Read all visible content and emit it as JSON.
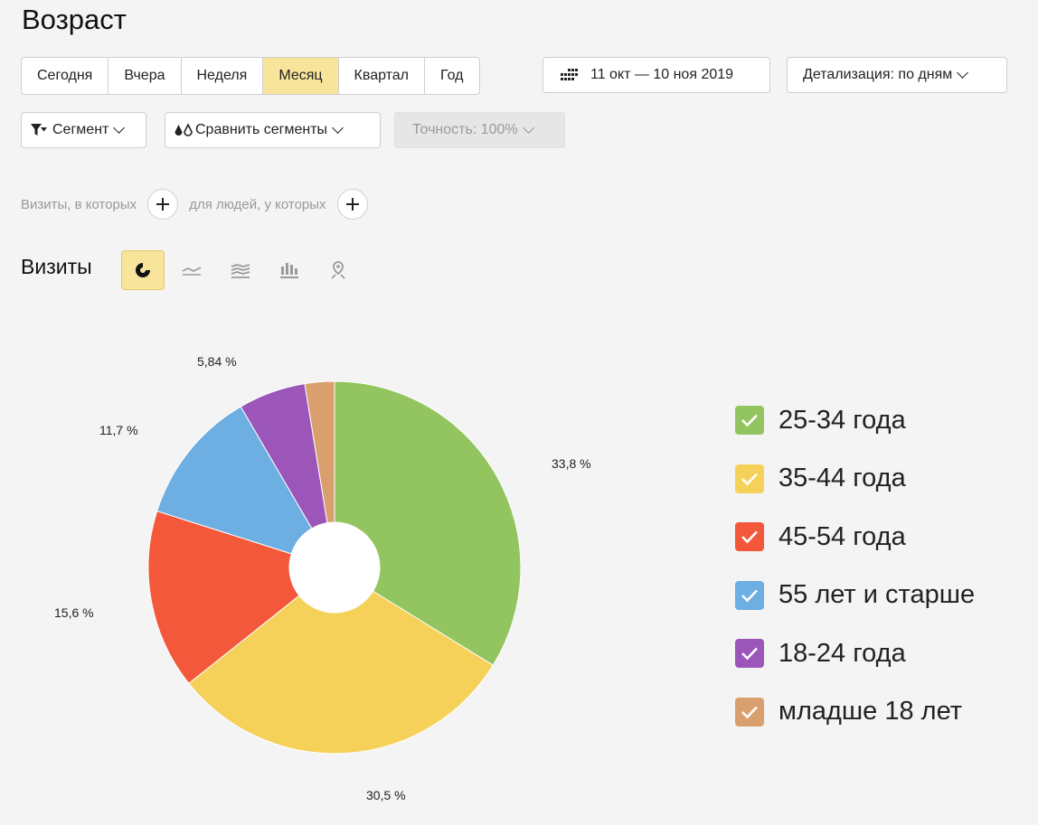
{
  "title": "Возраст",
  "period_buttons": [
    {
      "label": "Сегодня",
      "active": false
    },
    {
      "label": "Вчера",
      "active": false
    },
    {
      "label": "Неделя",
      "active": false
    },
    {
      "label": "Месяц",
      "active": true
    },
    {
      "label": "Квартал",
      "active": false
    },
    {
      "label": "Год",
      "active": false
    }
  ],
  "date_range": "11 окт — 10 ноя 2019",
  "detail": "Детализация: по дням",
  "segment": "Сегмент",
  "compare": "Сравнить сегменты",
  "accuracy": "Точность: 100%",
  "filters": {
    "visits": "Визиты, в которых",
    "people": "для людей, у которых"
  },
  "metric": "Визиты",
  "view_icons": [
    "pie-chart-icon",
    "line-chart-icon",
    "area-chart-icon",
    "bar-chart-icon",
    "map-pin-icon"
  ],
  "colors": {
    "active": "#f8e49a"
  },
  "chart_data": {
    "type": "pie",
    "donut": true,
    "series": [
      {
        "name": "25-34 года",
        "value": 33.8,
        "label": "33,8 %",
        "color": "#92c55f"
      },
      {
        "name": "35-44 года",
        "value": 30.5,
        "label": "30,5 %",
        "color": "#f5d15a"
      },
      {
        "name": "45-54 года",
        "value": 15.6,
        "label": "15,6 %",
        "color": "#f25839"
      },
      {
        "name": "55 лет и старше",
        "value": 11.7,
        "label": "11,7 %",
        "color": "#6daee3"
      },
      {
        "name": "18-24 года",
        "value": 5.84,
        "label": "5,84 %",
        "color": "#9c55b9"
      },
      {
        "name": "младше 18 лет",
        "value": 2.56,
        "label": "",
        "color": "#d9a06d"
      }
    ],
    "legend_position": "right"
  }
}
